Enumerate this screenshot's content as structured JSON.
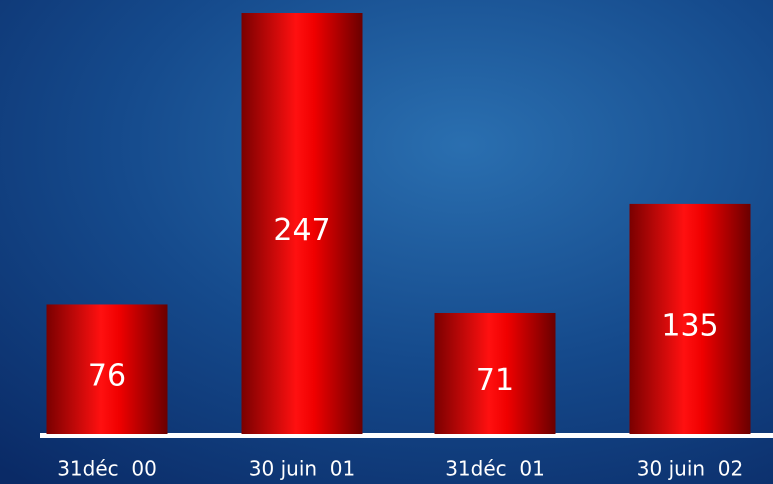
{
  "chart_data": {
    "type": "bar",
    "categories": [
      "31déc  00",
      "30 juin  01",
      "31déc  01",
      "30 juin  02"
    ],
    "values": [
      76,
      247,
      71,
      135
    ],
    "color": "#e00000"
  }
}
